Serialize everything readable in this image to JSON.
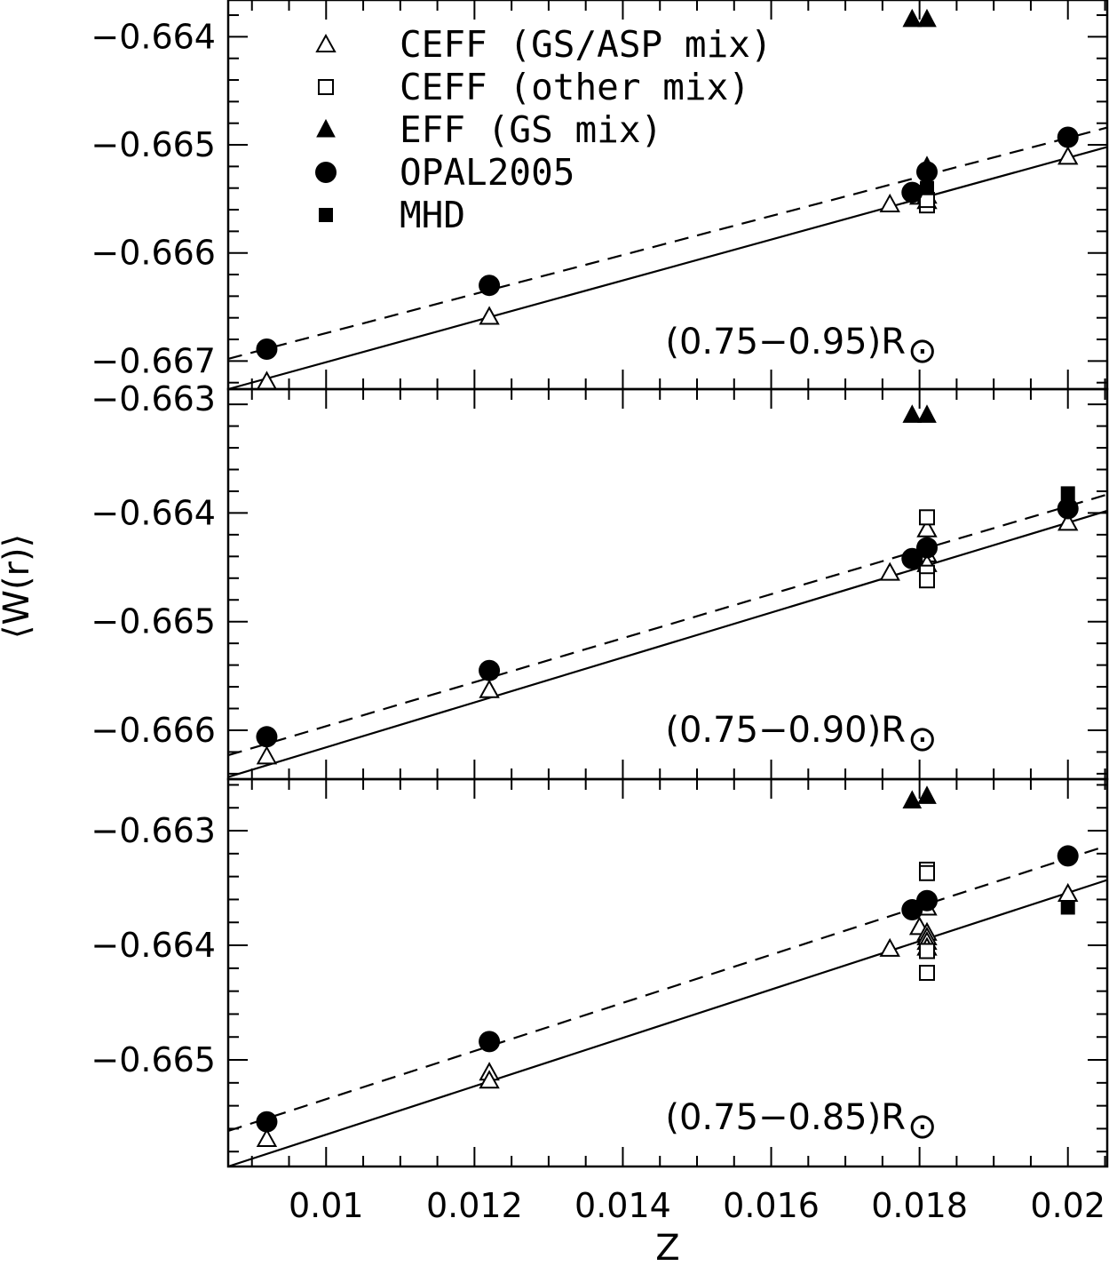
{
  "chart_data": {
    "type": "scatter",
    "ylabel": "⟨W(r)⟩",
    "xlabel": "Z",
    "x_ticks": [
      0.01,
      0.012,
      0.014,
      0.016,
      0.018,
      0.02
    ],
    "x_tick_labels": [
      "0.01",
      "0.012",
      "0.014",
      "0.016",
      "0.018",
      "0.02"
    ],
    "xlim": [
      0.00868,
      0.02053
    ],
    "legend": {
      "placement": "top-left",
      "entries": [
        {
          "marker": "open-triangle",
          "label": "CEFF (GS/ASP mix)"
        },
        {
          "marker": "open-square",
          "label": "CEFF (other mix)"
        },
        {
          "marker": "filled-triangle",
          "label": "EFF (GS mix)"
        },
        {
          "marker": "filled-circle",
          "label": "OPAL2005"
        },
        {
          "marker": "filled-square",
          "label": "MHD"
        }
      ]
    },
    "panels": [
      {
        "label": "(0.75−0.95)R",
        "label_symbol": "⊙",
        "ylim": [
          -0.66726,
          -0.66366
        ],
        "y_ticks": [
          -0.667,
          -0.666,
          -0.665,
          -0.664
        ],
        "y_tick_labels": [
          "−0.667",
          "−0.666",
          "−0.665",
          "−0.664"
        ],
        "y_top_label": "−0.663",
        "series": [
          {
            "name": "CEFF (GS/ASP mix)",
            "marker": "open-triangle",
            "points": [
              [
                0.0092,
                -0.66719
              ],
              [
                0.0122,
                -0.66659
              ],
              [
                0.0176,
                -0.66555
              ],
              [
                0.018,
                -0.66548
              ],
              [
                0.0181,
                -0.66552
              ],
              [
                0.0181,
                -0.66547
              ],
              [
                0.02,
                -0.66511
              ]
            ]
          },
          {
            "name": "CEFF (other mix)",
            "marker": "open-square",
            "points": [
              [
                0.0181,
                -0.66556
              ],
              [
                0.0181,
                -0.66551
              ]
            ]
          },
          {
            "name": "EFF (GS mix)",
            "marker": "filled-triangle",
            "points": [
              [
                0.0179,
                -0.66384
              ],
              [
                0.0181,
                -0.66384
              ],
              [
                0.0181,
                -0.6652
              ]
            ]
          },
          {
            "name": "OPAL2005",
            "marker": "filled-circle",
            "points": [
              [
                0.0092,
                -0.66689
              ],
              [
                0.0122,
                -0.6663
              ],
              [
                0.0179,
                -0.66544
              ],
              [
                0.0181,
                -0.66525
              ],
              [
                0.02,
                -0.66493
              ]
            ]
          },
          {
            "name": "MHD",
            "marker": "filled-square",
            "points": [
              [
                0.0181,
                -0.6654
              ]
            ]
          }
        ],
        "fits": [
          {
            "style": "solid",
            "x": [
              0.00868,
              0.02053
            ],
            "y": [
              -0.66726,
              -0.66502
            ]
          },
          {
            "style": "dashed",
            "x": [
              0.00868,
              0.02053
            ],
            "y": [
              -0.66698,
              -0.66484
            ]
          }
        ]
      },
      {
        "label": "(0.75−0.90)R",
        "label_symbol": "⊙",
        "ylim": [
          -0.66645,
          -0.66286
        ],
        "y_ticks": [
          -0.666,
          -0.665,
          -0.664
        ],
        "y_tick_labels": [
          "−0.666",
          "−0.665",
          "−0.664"
        ],
        "y_top_label": "",
        "series": [
          {
            "name": "CEFF (GS/ASP mix)",
            "marker": "open-triangle",
            "points": [
              [
                0.0092,
                -0.66624
              ],
              [
                0.0122,
                -0.66563
              ],
              [
                0.0176,
                -0.66455
              ],
              [
                0.018,
                -0.66438
              ],
              [
                0.0181,
                -0.66415
              ],
              [
                0.0181,
                -0.66438
              ],
              [
                0.0181,
                -0.66447
              ],
              [
                0.02,
                -0.66409
              ]
            ]
          },
          {
            "name": "CEFF (other mix)",
            "marker": "open-square",
            "points": [
              [
                0.0181,
                -0.66404
              ],
              [
                0.0181,
                -0.66455
              ],
              [
                0.0181,
                -0.66462
              ]
            ]
          },
          {
            "name": "EFF (GS mix)",
            "marker": "filled-triangle",
            "points": [
              [
                0.0179,
                -0.6631
              ],
              [
                0.0181,
                -0.6631
              ]
            ]
          },
          {
            "name": "OPAL2005",
            "marker": "filled-circle",
            "points": [
              [
                0.0092,
                -0.66606
              ],
              [
                0.0122,
                -0.66545
              ],
              [
                0.0179,
                -0.66442
              ],
              [
                0.0181,
                -0.66432
              ],
              [
                0.02,
                -0.66396
              ]
            ]
          },
          {
            "name": "MHD",
            "marker": "filled-square",
            "points": [
              [
                0.02,
                -0.66382
              ]
            ]
          }
        ],
        "fits": [
          {
            "style": "solid",
            "x": [
              0.00868,
              0.02053
            ],
            "y": [
              -0.66643,
              -0.66398
            ]
          },
          {
            "style": "dashed",
            "x": [
              0.00868,
              0.02053
            ],
            "y": [
              -0.66623,
              -0.66383
            ]
          }
        ]
      },
      {
        "label": "(0.75−0.85)R",
        "label_symbol": "⊙",
        "ylim": [
          -0.66593,
          -0.66255
        ],
        "y_ticks": [
          -0.665,
          -0.664,
          -0.663
        ],
        "y_tick_labels": [
          "−0.665",
          "−0.664",
          "−0.663"
        ],
        "y_top_label": "",
        "series": [
          {
            "name": "CEFF (GS/ASP mix)",
            "marker": "open-triangle",
            "points": [
              [
                0.0092,
                -0.66569
              ],
              [
                0.0122,
                -0.66511
              ],
              [
                0.0122,
                -0.66518
              ],
              [
                0.0176,
                -0.66403
              ],
              [
                0.018,
                -0.66384
              ],
              [
                0.0181,
                -0.66367
              ],
              [
                0.0181,
                -0.66389
              ],
              [
                0.0181,
                -0.66393
              ],
              [
                0.0181,
                -0.66397
              ],
              [
                0.0181,
                -0.66402
              ],
              [
                0.02,
                -0.66355
              ]
            ]
          },
          {
            "name": "CEFF (other mix)",
            "marker": "open-square",
            "points": [
              [
                0.0181,
                -0.66334
              ],
              [
                0.0181,
                -0.66337
              ],
              [
                0.0181,
                -0.66405
              ],
              [
                0.0181,
                -0.66424
              ]
            ]
          },
          {
            "name": "EFF (GS mix)",
            "marker": "filled-triangle",
            "points": [
              [
                0.0179,
                -0.66274
              ],
              [
                0.0181,
                -0.6627
              ]
            ]
          },
          {
            "name": "OPAL2005",
            "marker": "filled-circle",
            "points": [
              [
                0.0092,
                -0.66554
              ],
              [
                0.0122,
                -0.66484
              ],
              [
                0.0179,
                -0.66369
              ],
              [
                0.0181,
                -0.66361
              ],
              [
                0.02,
                -0.66322
              ]
            ]
          },
          {
            "name": "MHD",
            "marker": "filled-square",
            "points": [
              [
                0.02,
                -0.66367
              ]
            ]
          }
        ],
        "fits": [
          {
            "style": "solid",
            "x": [
              0.00868,
              0.02053
            ],
            "y": [
              -0.66593,
              -0.66343
            ]
          },
          {
            "style": "dashed",
            "x": [
              0.00868,
              0.02053
            ],
            "y": [
              -0.66562,
              -0.66313
            ]
          }
        ]
      }
    ]
  }
}
